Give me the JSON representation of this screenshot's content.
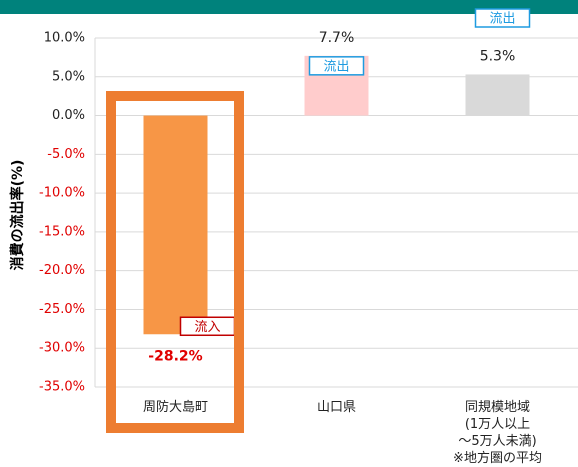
{
  "chart_data": {
    "type": "bar",
    "y_label": "消費の流出率(%)",
    "categories": [
      "周防大島町",
      "山口県",
      "同規模地域\n(1万人以上\n〜5万人未満)\n※地方圏の平均"
    ],
    "values": [
      -28.2,
      7.7,
      5.3
    ],
    "value_labels": [
      "-28.2%",
      "7.7%",
      "5.3%"
    ],
    "colors": [
      "#f79646",
      "#ffcccc",
      "#d9d9d9"
    ],
    "annotations": [
      "流入",
      "流出",
      "流出"
    ],
    "ylim": [
      -35,
      10
    ],
    "yticks": [
      {
        "value": 10,
        "label": "10.0%"
      },
      {
        "value": 5,
        "label": "5.0%"
      },
      {
        "value": 0,
        "label": "0.0%"
      },
      {
        "value": -5,
        "label": "-5.0%"
      },
      {
        "value": -10,
        "label": "-10.0%"
      },
      {
        "value": -15,
        "label": "-15.0%"
      },
      {
        "value": -20,
        "label": "-20.0%"
      },
      {
        "value": -25,
        "label": "-25.0%"
      },
      {
        "value": -30,
        "label": "-30.0%"
      },
      {
        "value": -35,
        "label": "-35.0%"
      }
    ],
    "grid": true
  }
}
